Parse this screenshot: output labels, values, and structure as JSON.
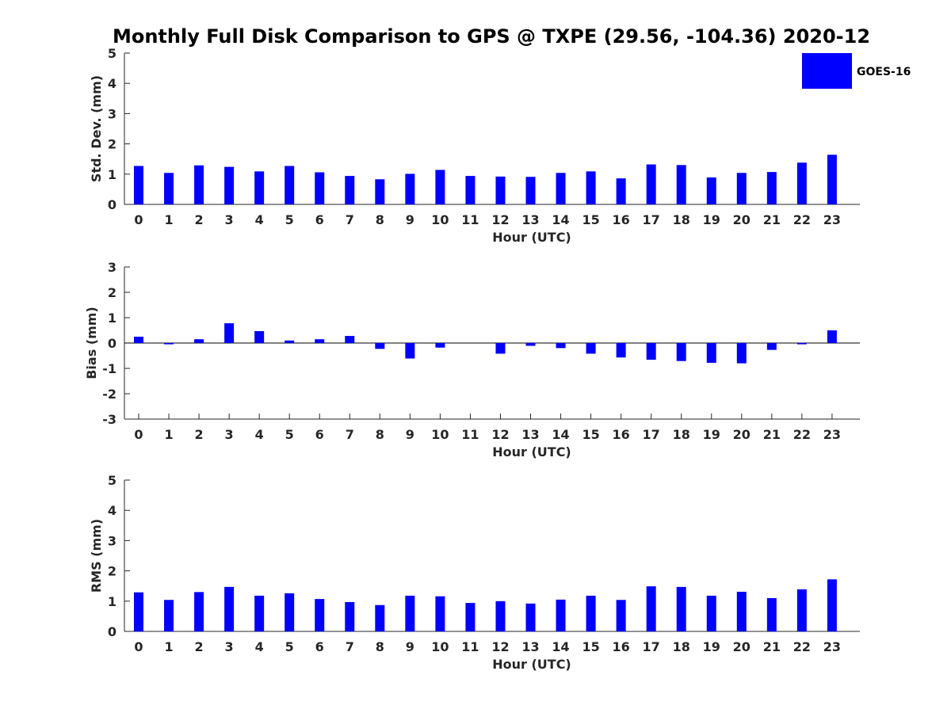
{
  "title": "Monthly Full Disk Comparison to GPS @ TXPE (29.56, -104.36) 2020-12",
  "legend": {
    "label": "GOES-16"
  },
  "colors": {
    "bar": "#0000ff",
    "axis": "#262626",
    "zero_line": "#000000"
  },
  "chart_data": [
    {
      "type": "bar",
      "title": "Monthly Full Disk Comparison to GPS @ TXPE (29.56, -104.36) 2020-12",
      "xlabel": "Hour (UTC)",
      "ylabel": "Std. Dev. (mm)",
      "ylim": [
        0,
        5
      ],
      "yticks": [
        0,
        1,
        2,
        3,
        4,
        5
      ],
      "categories": [
        "0",
        "1",
        "2",
        "3",
        "4",
        "5",
        "6",
        "7",
        "8",
        "9",
        "10",
        "11",
        "12",
        "13",
        "14",
        "15",
        "16",
        "17",
        "18",
        "19",
        "20",
        "21",
        "22",
        "23"
      ],
      "series": [
        {
          "name": "GOES-16",
          "values": [
            1.27,
            1.04,
            1.29,
            1.24,
            1.09,
            1.27,
            1.06,
            0.94,
            0.83,
            1.01,
            1.14,
            0.94,
            0.92,
            0.91,
            1.04,
            1.09,
            0.86,
            1.32,
            1.3,
            0.89,
            1.04,
            1.07,
            1.38,
            1.64
          ]
        }
      ]
    },
    {
      "type": "bar",
      "title": "",
      "xlabel": "Hour (UTC)",
      "ylabel": "Bias (mm)",
      "ylim": [
        -3,
        3
      ],
      "yticks": [
        -3,
        -2,
        -1,
        0,
        1,
        2,
        3
      ],
      "categories": [
        "0",
        "1",
        "2",
        "3",
        "4",
        "5",
        "6",
        "7",
        "8",
        "9",
        "10",
        "11",
        "12",
        "13",
        "14",
        "15",
        "16",
        "17",
        "18",
        "19",
        "20",
        "21",
        "22",
        "23"
      ],
      "series": [
        {
          "name": "GOES-16",
          "values": [
            0.25,
            -0.05,
            0.15,
            0.78,
            0.47,
            0.1,
            0.15,
            0.28,
            -0.23,
            -0.61,
            -0.18,
            0.0,
            -0.42,
            -0.11,
            -0.2,
            -0.42,
            -0.57,
            -0.66,
            -0.71,
            -0.78,
            -0.8,
            -0.27,
            -0.05,
            0.5
          ]
        }
      ]
    },
    {
      "type": "bar",
      "title": "",
      "xlabel": "Hour (UTC)",
      "ylabel": "RMS (mm)",
      "ylim": [
        0,
        5
      ],
      "yticks": [
        0,
        1,
        2,
        3,
        4,
        5
      ],
      "categories": [
        "0",
        "1",
        "2",
        "3",
        "4",
        "5",
        "6",
        "7",
        "8",
        "9",
        "10",
        "11",
        "12",
        "13",
        "14",
        "15",
        "16",
        "17",
        "18",
        "19",
        "20",
        "21",
        "22",
        "23"
      ],
      "series": [
        {
          "name": "GOES-16",
          "values": [
            1.29,
            1.04,
            1.3,
            1.47,
            1.18,
            1.26,
            1.07,
            0.97,
            0.87,
            1.18,
            1.16,
            0.94,
            1.0,
            0.92,
            1.05,
            1.18,
            1.04,
            1.49,
            1.47,
            1.18,
            1.31,
            1.1,
            1.39,
            1.72
          ]
        }
      ]
    }
  ]
}
